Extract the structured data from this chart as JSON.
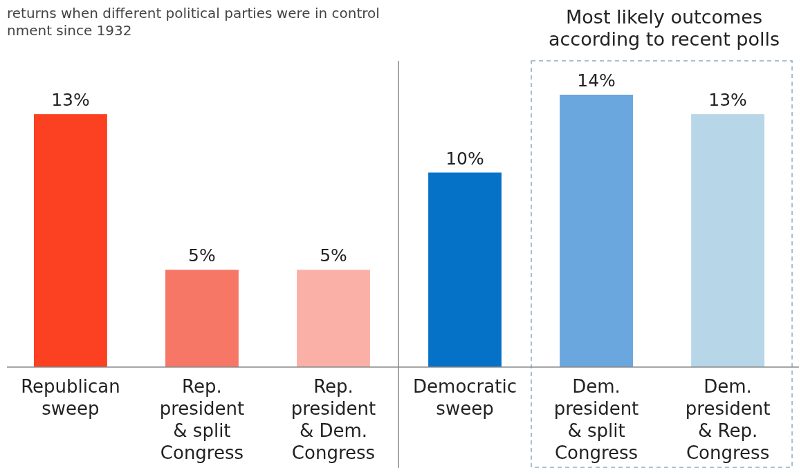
{
  "chart_data": {
    "type": "bar",
    "title": "returns when different political parties were in control\nnment since 1932",
    "categories": [
      "Republican sweep",
      "Rep. president & split Congress",
      "Rep. president & Dem. Congress",
      "Democratic sweep",
      "Dem. president & split Congress",
      "Dem. president & Rep. Congress"
    ],
    "values": [
      13,
      5,
      5,
      10,
      14,
      13
    ],
    "colors": [
      "#fc4122",
      "#f77766",
      "#fab0a6",
      "#0572c8",
      "#6aa7de",
      "#b7d7e8"
    ],
    "data_labels": true,
    "value_labels": [
      "13%",
      "5%",
      "5%",
      "10%",
      "14%",
      "13%"
    ],
    "annotations": [
      "Most likely outcomes\naccording to recent polls"
    ]
  }
}
